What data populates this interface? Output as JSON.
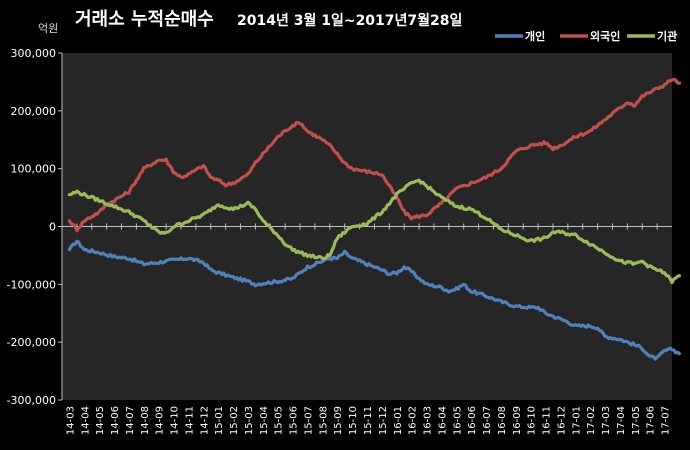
{
  "chart_data": {
    "type": "line",
    "title": "거래소 누적순매수",
    "subtitle": "2014년 3월 1일~2017년7월28일",
    "ylabel": "억원",
    "xlabel": "",
    "ylim": [
      -300000,
      300000
    ],
    "yticks": [
      "300,000",
      "200,000",
      "100,000",
      "0",
      "-100,000",
      "-200,000",
      "-300,000"
    ],
    "ytick_values": [
      300000,
      200000,
      100000,
      0,
      -100000,
      -200000,
      -300000
    ],
    "categories": [
      "14-03",
      "14-04",
      "14-05",
      "14-06",
      "14-07",
      "14-08",
      "14-09",
      "14-10",
      "14-11",
      "14-12",
      "15-01",
      "15-02",
      "15-03",
      "15-04",
      "15-05",
      "15-06",
      "15-07",
      "15-08",
      "15-09",
      "15-10",
      "15-11",
      "15-12",
      "16-01",
      "16-02",
      "16-03",
      "16-04",
      "16-05",
      "16-06",
      "16-07",
      "16-08",
      "16-09",
      "16-10",
      "16-11",
      "16-12",
      "17-01",
      "17-02",
      "17-03",
      "17-04",
      "17-05",
      "17-06",
      "17-07"
    ],
    "grid": false,
    "legend_position": "top-right",
    "background": "#262626",
    "series": [
      {
        "name": "개인",
        "color": "#4f81bd",
        "points": [
          [
            0,
            -40000
          ],
          [
            0.5,
            -25000
          ],
          [
            1,
            -40000
          ],
          [
            2,
            -45000
          ],
          [
            3,
            -52000
          ],
          [
            4,
            -55000
          ],
          [
            5,
            -65000
          ],
          [
            6,
            -62000
          ],
          [
            7,
            -58000
          ],
          [
            8,
            -55000
          ],
          [
            9,
            -62000
          ],
          [
            9.5,
            -75000
          ],
          [
            10,
            -80000
          ],
          [
            11,
            -88000
          ],
          [
            12,
            -95000
          ],
          [
            12.5,
            -100000
          ],
          [
            13,
            -98000
          ],
          [
            14,
            -95000
          ],
          [
            15,
            -90000
          ],
          [
            15.5,
            -80000
          ],
          [
            16,
            -70000
          ],
          [
            17,
            -60000
          ],
          [
            17.5,
            -55000
          ],
          [
            18,
            -55000
          ],
          [
            18.5,
            -45000
          ],
          [
            19,
            -55000
          ],
          [
            20,
            -65000
          ],
          [
            20.5,
            -70000
          ],
          [
            21,
            -75000
          ],
          [
            21.5,
            -82000
          ],
          [
            22,
            -80000
          ],
          [
            22.5,
            -70000
          ],
          [
            23,
            -78000
          ],
          [
            23.5,
            -90000
          ],
          [
            24,
            -100000
          ],
          [
            25,
            -105000
          ],
          [
            25.5,
            -112000
          ],
          [
            26,
            -108000
          ],
          [
            26.5,
            -100000
          ],
          [
            27,
            -112000
          ],
          [
            28,
            -120000
          ],
          [
            29,
            -130000
          ],
          [
            30,
            -138000
          ],
          [
            31,
            -140000
          ],
          [
            31.5,
            -140000
          ],
          [
            32,
            -150000
          ],
          [
            33,
            -160000
          ],
          [
            33.5,
            -165000
          ],
          [
            34,
            -172000
          ],
          [
            35,
            -172000
          ],
          [
            35.5,
            -175000
          ],
          [
            36,
            -190000
          ],
          [
            37,
            -195000
          ],
          [
            37.5,
            -200000
          ],
          [
            38,
            -205000
          ],
          [
            38.5,
            -210000
          ],
          [
            39,
            -225000
          ],
          [
            39.5,
            -228000
          ],
          [
            40,
            -215000
          ],
          [
            40.5,
            -212000
          ],
          [
            41,
            -220000
          ]
        ]
      },
      {
        "name": "외국인",
        "color": "#c0504d",
        "points": [
          [
            0,
            10000
          ],
          [
            0.5,
            -5000
          ],
          [
            1,
            10000
          ],
          [
            2,
            25000
          ],
          [
            2.5,
            38000
          ],
          [
            3,
            45000
          ],
          [
            4,
            60000
          ],
          [
            5,
            100000
          ],
          [
            6,
            115000
          ],
          [
            6.5,
            115000
          ],
          [
            7,
            95000
          ],
          [
            7.5,
            85000
          ],
          [
            8,
            90000
          ],
          [
            9,
            105000
          ],
          [
            9.5,
            85000
          ],
          [
            10,
            80000
          ],
          [
            10.5,
            72000
          ],
          [
            11,
            75000
          ],
          [
            12,
            90000
          ],
          [
            12.5,
            110000
          ],
          [
            13,
            125000
          ],
          [
            14,
            155000
          ],
          [
            15,
            175000
          ],
          [
            15.5,
            180000
          ],
          [
            16,
            165000
          ],
          [
            17,
            150000
          ],
          [
            17.5,
            140000
          ],
          [
            18,
            125000
          ],
          [
            18.5,
            110000
          ],
          [
            19,
            100000
          ],
          [
            20,
            95000
          ],
          [
            21,
            90000
          ],
          [
            21.5,
            70000
          ],
          [
            22,
            50000
          ],
          [
            22.5,
            25000
          ],
          [
            23,
            15000
          ],
          [
            24,
            20000
          ],
          [
            25,
            40000
          ],
          [
            26,
            65000
          ],
          [
            27,
            75000
          ],
          [
            28,
            85000
          ],
          [
            29,
            100000
          ],
          [
            29.5,
            115000
          ],
          [
            30,
            130000
          ],
          [
            31,
            140000
          ],
          [
            32,
            145000
          ],
          [
            32.5,
            135000
          ],
          [
            33,
            140000
          ],
          [
            34,
            155000
          ],
          [
            35,
            165000
          ],
          [
            35.5,
            175000
          ],
          [
            36,
            185000
          ],
          [
            37,
            205000
          ],
          [
            37.5,
            215000
          ],
          [
            38,
            210000
          ],
          [
            38.5,
            225000
          ],
          [
            39,
            232000
          ],
          [
            40,
            245000
          ],
          [
            40.5,
            255000
          ],
          [
            41,
            248000
          ]
        ]
      },
      {
        "name": "기관",
        "color": "#9bbb59",
        "points": [
          [
            0,
            55000
          ],
          [
            0.5,
            60000
          ],
          [
            1,
            55000
          ],
          [
            2,
            45000
          ],
          [
            3,
            35000
          ],
          [
            4,
            25000
          ],
          [
            5,
            10000
          ],
          [
            6,
            -10000
          ],
          [
            6.5,
            -12000
          ],
          [
            7,
            0
          ],
          [
            8,
            10000
          ],
          [
            9,
            20000
          ],
          [
            10,
            38000
          ],
          [
            11,
            30000
          ],
          [
            11.5,
            35000
          ],
          [
            12,
            40000
          ],
          [
            12.5,
            30000
          ],
          [
            13,
            10000
          ],
          [
            14,
            -15000
          ],
          [
            14.5,
            -30000
          ],
          [
            15,
            -40000
          ],
          [
            16,
            -50000
          ],
          [
            17,
            -55000
          ],
          [
            17.5,
            -50000
          ],
          [
            18,
            -20000
          ],
          [
            18.5,
            -10000
          ],
          [
            19,
            0
          ],
          [
            20,
            5000
          ],
          [
            21,
            25000
          ],
          [
            21.5,
            40000
          ],
          [
            22,
            55000
          ],
          [
            23,
            75000
          ],
          [
            23.5,
            80000
          ],
          [
            24,
            70000
          ],
          [
            25,
            50000
          ],
          [
            26,
            35000
          ],
          [
            27,
            30000
          ],
          [
            28,
            15000
          ],
          [
            29,
            -5000
          ],
          [
            30,
            -15000
          ],
          [
            31,
            -25000
          ],
          [
            32,
            -20000
          ],
          [
            32.5,
            -10000
          ],
          [
            33,
            -10000
          ],
          [
            34,
            -15000
          ],
          [
            35,
            -30000
          ],
          [
            36,
            -45000
          ],
          [
            37,
            -60000
          ],
          [
            38,
            -65000
          ],
          [
            38.5,
            -60000
          ],
          [
            39,
            -70000
          ],
          [
            40,
            -80000
          ],
          [
            40.5,
            -95000
          ],
          [
            41,
            -85000
          ]
        ]
      }
    ]
  }
}
